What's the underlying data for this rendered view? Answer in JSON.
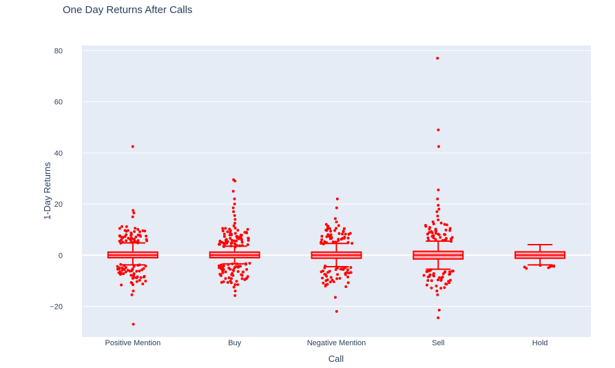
{
  "chart_data": {
    "type": "box",
    "title": "One Day Returns After Calls",
    "xlabel": "Call",
    "ylabel": "1-Day Returns",
    "ylim": [
      -32,
      82
    ],
    "yticks": [
      {
        "value": -20,
        "label": "−20"
      },
      {
        "value": 0,
        "label": "0"
      },
      {
        "value": 20,
        "label": "20"
      },
      {
        "value": 40,
        "label": "40"
      },
      {
        "value": 60,
        "label": "60"
      },
      {
        "value": 80,
        "label": "80"
      }
    ],
    "grid": true,
    "colors": {
      "plot_bg": "#e5ecf6",
      "grid": "#ffffff",
      "box_line": "#ff0000",
      "box_fill": "#ff9da7",
      "points": "#ff0000"
    },
    "categories": [
      "Positive Mention",
      "Buy",
      "Negative Mention",
      "Sell",
      "Hold"
    ],
    "boxes": [
      {
        "category": "Positive Mention",
        "q1": -1,
        "median": 0,
        "q3": 1.2,
        "lower_fence": -3.8,
        "upper_fence": 4.8,
        "outliers_high": [
          5,
          5.3,
          5.6,
          6,
          6.4,
          6.8,
          7.2,
          7.7,
          8.3,
          9,
          9.8,
          10.6,
          15,
          16.5,
          17.5,
          42.5
        ],
        "outliers_low": [
          -4,
          -4.4,
          -4.8,
          -5.3,
          -5.8,
          -6.4,
          -7,
          -7.7,
          -8.5,
          -9.3,
          -10.2,
          -11.5,
          -14,
          -15.5,
          -27
        ]
      },
      {
        "category": "Buy",
        "q1": -1,
        "median": 0,
        "q3": 1.2,
        "lower_fence": -3.4,
        "upper_fence": 3.5,
        "outliers_high": [
          3.7,
          4,
          4.3,
          4.7,
          5.1,
          5.5,
          5.9,
          6.3,
          6.8,
          7.3,
          7.8,
          8.4,
          9,
          9.7,
          10.5,
          11.5,
          12.5,
          14,
          15.5,
          17,
          18.5,
          20,
          22,
          25,
          29,
          29.5
        ],
        "outliers_low": [
          -3.6,
          -3.9,
          -4.2,
          -4.6,
          -5,
          -5.4,
          -5.8,
          -6.3,
          -6.8,
          -7.4,
          -8,
          -8.7,
          -9.5,
          -10.3,
          -11.2,
          -12.5,
          -14,
          -15.8
        ]
      },
      {
        "category": "Negative Mention",
        "q1": -1.2,
        "median": 0,
        "q3": 1.2,
        "lower_fence": -4.5,
        "upper_fence": 4.6,
        "outliers_high": [
          4.8,
          5.2,
          5.6,
          6,
          6.5,
          7,
          7.6,
          8.2,
          9,
          9.8,
          10.7,
          11.8,
          13,
          14.3,
          18.5,
          22
        ],
        "outliers_low": [
          -4.7,
          -5.1,
          -5.5,
          -6,
          -6.5,
          -7.1,
          -7.8,
          -8.6,
          -9.5,
          -10.6,
          -12,
          -16.5,
          -22
        ]
      },
      {
        "category": "Sell",
        "q1": -1.5,
        "median": 0,
        "q3": 1.5,
        "lower_fence": -5.5,
        "upper_fence": 5.5,
        "outliers_high": [
          5.8,
          6.2,
          6.7,
          7.2,
          7.8,
          8.5,
          9.3,
          10.2,
          11.3,
          12.5,
          13.8,
          15.3,
          17,
          18,
          19.5,
          22,
          25.5,
          42.5,
          49,
          77
        ],
        "outliers_low": [
          -5.8,
          -6.2,
          -6.7,
          -7.2,
          -7.8,
          -8.5,
          -9.3,
          -10.2,
          -11.2,
          -12.5,
          -14,
          -15.5,
          -21.5,
          -24.5
        ]
      },
      {
        "category": "Hold",
        "q1": -1.2,
        "median": 0,
        "q3": 1.3,
        "lower_fence": -3.8,
        "upper_fence": 4.1,
        "outliers_high": [],
        "outliers_low": [
          -4.6,
          -4.6
        ]
      }
    ]
  }
}
